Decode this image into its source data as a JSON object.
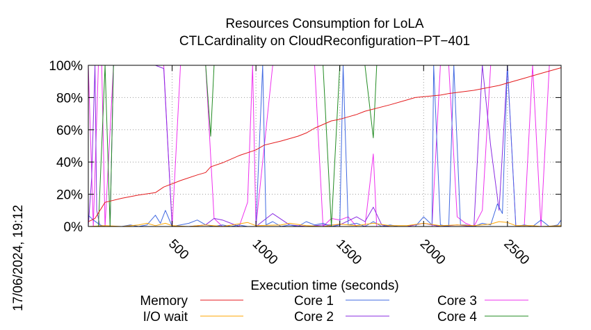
{
  "chart_data": {
    "type": "line",
    "title": "Resources Consumption for LoLA",
    "subtitle": "CTLCardinality on CloudReconfiguration−PT−401",
    "xlabel": "Execution time (seconds)",
    "ylabel": "",
    "xlim": [
      0,
      2820
    ],
    "ylim": [
      0,
      100
    ],
    "x_ticks": [
      500,
      1000,
      1500,
      2000,
      2500
    ],
    "x_tick_labels": [
      "500",
      "1000",
      "1500",
      "2000",
      "2500"
    ],
    "y_ticks": [
      0,
      20,
      40,
      60,
      80,
      100
    ],
    "y_tick_labels": [
      "0%",
      "20%",
      "40%",
      "60%",
      "80%",
      "100%"
    ],
    "grid": true,
    "legend_position": "bottom",
    "timestamp": "17/06/2024, 19:12",
    "series": [
      {
        "name": "Memory",
        "color": "#e41a1c",
        "points": [
          [
            0,
            3
          ],
          [
            40,
            5
          ],
          [
            100,
            15
          ],
          [
            200,
            17.5
          ],
          [
            300,
            19.5
          ],
          [
            400,
            21
          ],
          [
            450,
            24.5
          ],
          [
            550,
            28.5
          ],
          [
            650,
            32
          ],
          [
            700,
            33.5
          ],
          [
            730,
            37
          ],
          [
            800,
            39.5
          ],
          [
            900,
            44
          ],
          [
            1000,
            47.5
          ],
          [
            1050,
            50.5
          ],
          [
            1150,
            53
          ],
          [
            1250,
            56
          ],
          [
            1300,
            58
          ],
          [
            1350,
            61
          ],
          [
            1450,
            65.5
          ],
          [
            1500,
            66.5
          ],
          [
            1600,
            69.5
          ],
          [
            1650,
            71.5
          ],
          [
            1800,
            75.5
          ],
          [
            1900,
            78.5
          ],
          [
            1950,
            80
          ],
          [
            2100,
            81.5
          ],
          [
            2150,
            82.5
          ],
          [
            2300,
            84.5
          ],
          [
            2450,
            87.5
          ],
          [
            2500,
            89
          ],
          [
            2600,
            92
          ],
          [
            2700,
            95
          ],
          [
            2820,
            98.5
          ]
        ]
      },
      {
        "name": "I/O wait",
        "color": "#ffa500",
        "points": [
          [
            0,
            0
          ],
          [
            100,
            0.5
          ],
          [
            200,
            0
          ],
          [
            300,
            1
          ],
          [
            350,
            2
          ],
          [
            400,
            0.5
          ],
          [
            460,
            2
          ],
          [
            500,
            0.5
          ],
          [
            600,
            0
          ],
          [
            700,
            1
          ],
          [
            800,
            0
          ],
          [
            950,
            2.5
          ],
          [
            1000,
            0.5
          ],
          [
            1150,
            1
          ],
          [
            1200,
            2
          ],
          [
            1300,
            0.5
          ],
          [
            1400,
            0
          ],
          [
            1500,
            1.5
          ],
          [
            1600,
            0.5
          ],
          [
            1700,
            2
          ],
          [
            1800,
            0.5
          ],
          [
            1900,
            0.5
          ],
          [
            2000,
            2
          ],
          [
            2100,
            0.5
          ],
          [
            2200,
            1
          ],
          [
            2300,
            0.5
          ],
          [
            2400,
            1.5
          ],
          [
            2450,
            3
          ],
          [
            2500,
            2.5
          ],
          [
            2550,
            0.5
          ],
          [
            2650,
            0.5
          ],
          [
            2700,
            0
          ],
          [
            2820,
            0.5
          ]
        ]
      },
      {
        "name": "Core 1",
        "color": "#4169e1",
        "points": [
          [
            0,
            7
          ],
          [
            30,
            4
          ],
          [
            70,
            1
          ],
          [
            100,
            0
          ],
          [
            150,
            0
          ],
          [
            200,
            0
          ],
          [
            250,
            1
          ],
          [
            300,
            0
          ],
          [
            350,
            1
          ],
          [
            400,
            7
          ],
          [
            430,
            2
          ],
          [
            460,
            10
          ],
          [
            500,
            0
          ],
          [
            550,
            1
          ],
          [
            600,
            2
          ],
          [
            650,
            4
          ],
          [
            700,
            1
          ],
          [
            750,
            0
          ],
          [
            800,
            1
          ],
          [
            850,
            0
          ],
          [
            900,
            1
          ],
          [
            950,
            0
          ],
          [
            1000,
            0
          ],
          [
            1040,
            100
          ],
          [
            1060,
            1
          ],
          [
            1100,
            3
          ],
          [
            1150,
            0
          ],
          [
            1200,
            1
          ],
          [
            1250,
            0
          ],
          [
            1300,
            3
          ],
          [
            1350,
            1
          ],
          [
            1400,
            2
          ],
          [
            1450,
            0
          ],
          [
            1500,
            1
          ],
          [
            1520,
            100
          ],
          [
            1550,
            1
          ],
          [
            1600,
            2
          ],
          [
            1650,
            0
          ],
          [
            1700,
            3
          ],
          [
            1750,
            0
          ],
          [
            1800,
            1
          ],
          [
            1850,
            0
          ],
          [
            1950,
            0
          ],
          [
            2000,
            6
          ],
          [
            2050,
            1
          ],
          [
            2060,
            100
          ],
          [
            2100,
            1
          ],
          [
            2150,
            0
          ],
          [
            2180,
            100
          ],
          [
            2220,
            1
          ],
          [
            2250,
            1
          ],
          [
            2300,
            0
          ],
          [
            2350,
            2
          ],
          [
            2400,
            1
          ],
          [
            2440,
            14
          ],
          [
            2470,
            8
          ],
          [
            2500,
            100
          ],
          [
            2550,
            0
          ],
          [
            2600,
            1
          ],
          [
            2650,
            0
          ],
          [
            2700,
            4
          ],
          [
            2750,
            0
          ],
          [
            2800,
            1
          ],
          [
            2820,
            4
          ]
        ]
      },
      {
        "name": "Core 2",
        "color": "#8a2be2",
        "points": [
          [
            0,
            0
          ],
          [
            20,
            30
          ],
          [
            40,
            100
          ],
          [
            50,
            10
          ],
          [
            70,
            0
          ],
          [
            130,
            0
          ],
          [
            150,
            100
          ],
          [
            200,
            100
          ],
          [
            300,
            100
          ],
          [
            350,
            100
          ],
          [
            400,
            100
          ],
          [
            450,
            98
          ],
          [
            500,
            0
          ],
          [
            600,
            0
          ],
          [
            700,
            1
          ],
          [
            750,
            5
          ],
          [
            800,
            4
          ],
          [
            900,
            0
          ],
          [
            1000,
            0
          ],
          [
            1100,
            8
          ],
          [
            1200,
            1
          ],
          [
            1300,
            0
          ],
          [
            1400,
            1
          ],
          [
            1500,
            1
          ],
          [
            1600,
            6
          ],
          [
            1650,
            3
          ],
          [
            1700,
            12
          ],
          [
            1750,
            1
          ],
          [
            1800,
            0
          ],
          [
            1900,
            0
          ],
          [
            2000,
            2
          ],
          [
            2100,
            0
          ],
          [
            2200,
            1
          ],
          [
            2300,
            0
          ],
          [
            2350,
            100
          ],
          [
            2400,
            50
          ],
          [
            2450,
            10
          ],
          [
            2500,
            100
          ],
          [
            2600,
            100
          ],
          [
            2650,
            100
          ],
          [
            2700,
            100
          ],
          [
            2820,
            100
          ]
        ]
      },
      {
        "name": "Core 3",
        "color": "#ee30ee",
        "points": [
          [
            0,
            100
          ],
          [
            30,
            0
          ],
          [
            60,
            100
          ],
          [
            80,
            100
          ],
          [
            100,
            0
          ],
          [
            150,
            100
          ],
          [
            200,
            100
          ],
          [
            300,
            100
          ],
          [
            350,
            100
          ],
          [
            400,
            100
          ],
          [
            450,
            100
          ],
          [
            480,
            40
          ],
          [
            500,
            0
          ],
          [
            550,
            100
          ],
          [
            650,
            100
          ],
          [
            700,
            100
          ],
          [
            750,
            5
          ],
          [
            800,
            0
          ],
          [
            900,
            0
          ],
          [
            950,
            15
          ],
          [
            980,
            100
          ],
          [
            1000,
            0
          ],
          [
            1100,
            100
          ],
          [
            1200,
            100
          ],
          [
            1300,
            100
          ],
          [
            1350,
            100
          ],
          [
            1400,
            0
          ],
          [
            1450,
            5
          ],
          [
            1500,
            4
          ],
          [
            1550,
            6
          ],
          [
            1600,
            0
          ],
          [
            1650,
            0
          ],
          [
            1700,
            45
          ],
          [
            1720,
            0
          ],
          [
            1750,
            0
          ],
          [
            1800,
            0
          ],
          [
            1900,
            0
          ],
          [
            2000,
            0
          ],
          [
            2050,
            0
          ],
          [
            2100,
            100
          ],
          [
            2150,
            100
          ],
          [
            2200,
            6
          ],
          [
            2250,
            2
          ],
          [
            2300,
            0
          ],
          [
            2350,
            10
          ],
          [
            2400,
            100
          ],
          [
            2450,
            100
          ],
          [
            2500,
            100
          ],
          [
            2550,
            0
          ],
          [
            2600,
            0
          ],
          [
            2650,
            100
          ],
          [
            2700,
            0
          ],
          [
            2750,
            100
          ],
          [
            2800,
            100
          ],
          [
            2820,
            100
          ]
        ]
      },
      {
        "name": "Core 4",
        "color": "#228b22",
        "points": [
          [
            0,
            0
          ],
          [
            30,
            0
          ],
          [
            60,
            0
          ],
          [
            100,
            100
          ],
          [
            130,
            0
          ],
          [
            150,
            100
          ],
          [
            200,
            100
          ],
          [
            300,
            100
          ],
          [
            350,
            100
          ],
          [
            400,
            100
          ],
          [
            450,
            100
          ],
          [
            500,
            100
          ],
          [
            600,
            100
          ],
          [
            700,
            100
          ],
          [
            730,
            56
          ],
          [
            750,
            100
          ],
          [
            800,
            100
          ],
          [
            900,
            100
          ],
          [
            950,
            100
          ],
          [
            1000,
            100
          ],
          [
            1100,
            100
          ],
          [
            1200,
            100
          ],
          [
            1300,
            100
          ],
          [
            1350,
            100
          ],
          [
            1400,
            100
          ],
          [
            1450,
            0
          ],
          [
            1500,
            100
          ],
          [
            1600,
            100
          ],
          [
            1650,
            100
          ],
          [
            1700,
            55
          ],
          [
            1720,
            100
          ],
          [
            1750,
            100
          ],
          [
            1800,
            100
          ],
          [
            1900,
            100
          ],
          [
            2000,
            100
          ],
          [
            2100,
            100
          ],
          [
            2200,
            100
          ],
          [
            2300,
            100
          ],
          [
            2400,
            100
          ],
          [
            2450,
            100
          ],
          [
            2500,
            100
          ],
          [
            2600,
            100
          ],
          [
            2700,
            100
          ],
          [
            2820,
            100
          ]
        ]
      }
    ]
  }
}
